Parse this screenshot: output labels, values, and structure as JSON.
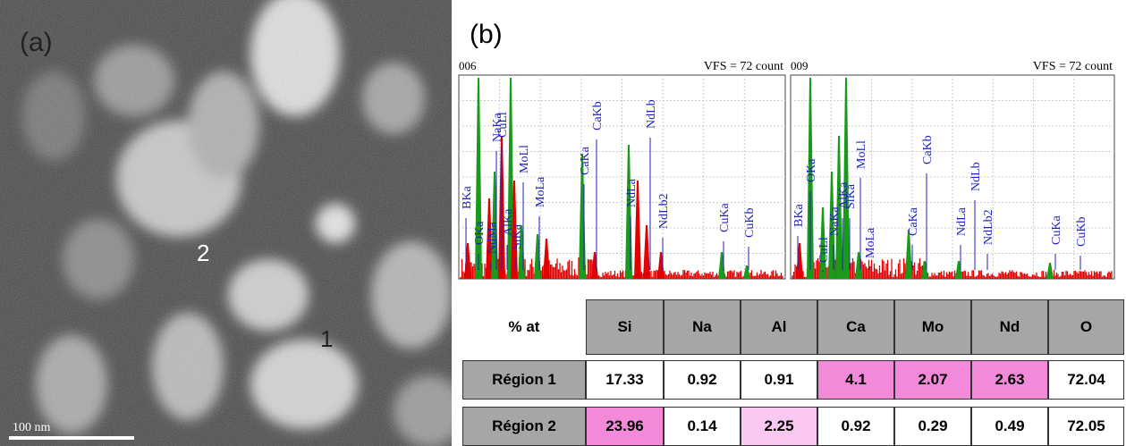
{
  "panel_a": {
    "label": "(a)",
    "markers": [
      "1",
      "2"
    ],
    "scale_bar": "100 nm"
  },
  "panel_b": {
    "label": "(b)",
    "spectra": [
      {
        "id": "006",
        "scale": "VFS = 72 count",
        "peaks": [
          "BKa",
          "OKa",
          "NdMa",
          "NaKa",
          "CuLl",
          "AlKa",
          "SiKa",
          "MoLl",
          "MoLa",
          "CaKa",
          "CaKb",
          "NdLa",
          "NdLb",
          "NdLb2",
          "CuKa",
          "CuKb"
        ]
      },
      {
        "id": "009",
        "scale": "VFS = 72 count",
        "peaks": [
          "BKa",
          "OKa",
          "CuLl",
          "NaKa",
          "AlKa",
          "SiKa",
          "MoLl",
          "MoLa",
          "CaKa",
          "CaKb",
          "NdLa",
          "NdLb",
          "NdLb2",
          "CuKa",
          "CuKb"
        ]
      }
    ]
  },
  "table": {
    "header": [
      "% at",
      "Si",
      "Na",
      "Al",
      "Ca",
      "Mo",
      "Nd",
      "O"
    ],
    "rows": [
      [
        "Région 1",
        17.33,
        0.92,
        0.91,
        4.1,
        2.07,
        2.63,
        72.04
      ],
      [
        "Région 2",
        23.96,
        0.14,
        2.25,
        0.92,
        0.29,
        0.49,
        72.05
      ]
    ]
  }
}
